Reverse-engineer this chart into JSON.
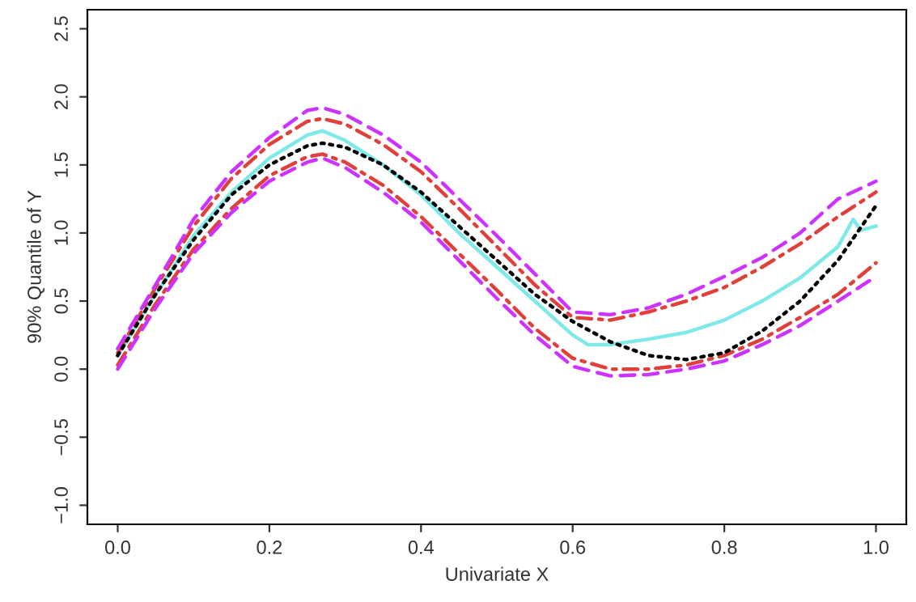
{
  "chart_data": {
    "type": "line",
    "xlabel": "Univariate X",
    "ylabel": "90% Quantile of Y",
    "x": [
      0,
      0.05,
      0.1,
      0.15,
      0.2,
      0.25,
      0.27,
      0.3,
      0.35,
      0.4,
      0.45,
      0.5,
      0.55,
      0.6,
      0.65,
      0.7,
      0.75,
      0.8,
      0.85,
      0.9,
      0.95,
      1.0
    ],
    "series": [
      {
        "color": "#000000",
        "line_style": "dotted",
        "values": [
          0.1,
          0.55,
          0.95,
          1.28,
          1.5,
          1.64,
          1.66,
          1.63,
          1.5,
          1.3,
          1.05,
          0.8,
          0.55,
          0.35,
          0.2,
          0.1,
          0.07,
          0.12,
          0.28,
          0.5,
          0.8,
          1.2
        ]
      },
      {
        "color": "#7fe8e8",
        "line_style": "solid",
        "x": [
          0,
          0.05,
          0.1,
          0.15,
          0.2,
          0.25,
          0.27,
          0.3,
          0.35,
          0.4,
          0.45,
          0.5,
          0.55,
          0.6,
          0.62,
          0.65,
          0.7,
          0.75,
          0.8,
          0.85,
          0.9,
          0.95,
          0.97,
          0.98,
          1.0
        ],
        "values": [
          0.1,
          0.55,
          0.98,
          1.3,
          1.55,
          1.72,
          1.75,
          1.68,
          1.5,
          1.28,
          1.0,
          0.75,
          0.5,
          0.25,
          0.18,
          0.18,
          0.22,
          0.27,
          0.36,
          0.5,
          0.67,
          0.9,
          1.1,
          1.02,
          1.05
        ]
      },
      {
        "color": "#e0403a",
        "line_style": "dashdot",
        "values": [
          0.12,
          0.6,
          1.05,
          1.4,
          1.65,
          1.82,
          1.84,
          1.8,
          1.65,
          1.45,
          1.18,
          0.9,
          0.62,
          0.38,
          0.36,
          0.42,
          0.5,
          0.6,
          0.75,
          0.92,
          1.12,
          1.3
        ]
      },
      {
        "color": "#e0403a",
        "line_style": "dashdot",
        "values": [
          0.03,
          0.48,
          0.88,
          1.18,
          1.42,
          1.56,
          1.58,
          1.52,
          1.35,
          1.12,
          0.85,
          0.58,
          0.3,
          0.08,
          0.0,
          0.0,
          0.03,
          0.1,
          0.22,
          0.38,
          0.55,
          0.78
        ]
      },
      {
        "color": "#cc33ff",
        "line_style": "dashed",
        "values": [
          0.15,
          0.62,
          1.1,
          1.45,
          1.7,
          1.9,
          1.92,
          1.87,
          1.72,
          1.52,
          1.25,
          0.98,
          0.7,
          0.42,
          0.4,
          0.45,
          0.55,
          0.68,
          0.82,
          1.0,
          1.25,
          1.38
        ]
      },
      {
        "color": "#cc33ff",
        "line_style": "dashed",
        "values": [
          0.0,
          0.45,
          0.85,
          1.15,
          1.38,
          1.52,
          1.55,
          1.48,
          1.3,
          1.08,
          0.8,
          0.52,
          0.25,
          0.02,
          -0.05,
          -0.04,
          0.0,
          0.06,
          0.18,
          0.32,
          0.5,
          0.68
        ]
      }
    ],
    "xlim": [
      -0.04,
      1.04
    ],
    "ylim": [
      -1.14,
      2.64
    ],
    "xticks": [
      {
        "value": 0,
        "label": "0.0"
      },
      {
        "value": 0.2,
        "label": "0.2"
      },
      {
        "value": 0.4,
        "label": "0.4"
      },
      {
        "value": 0.6,
        "label": "0.6"
      },
      {
        "value": 0.8,
        "label": "0.8"
      },
      {
        "value": 1.0,
        "label": "1.0"
      }
    ],
    "yticks": [
      {
        "value": -1,
        "label": "−1.0"
      },
      {
        "value": -0.5,
        "label": "−0.5"
      },
      {
        "value": 0,
        "label": "0.0"
      },
      {
        "value": 0.5,
        "label": "0.5"
      },
      {
        "value": 1,
        "label": "1.0"
      },
      {
        "value": 1.5,
        "label": "1.5"
      },
      {
        "value": 2,
        "label": "2.0"
      },
      {
        "value": 2.5,
        "label": "2.5"
      }
    ],
    "grid": false,
    "legend": false
  }
}
